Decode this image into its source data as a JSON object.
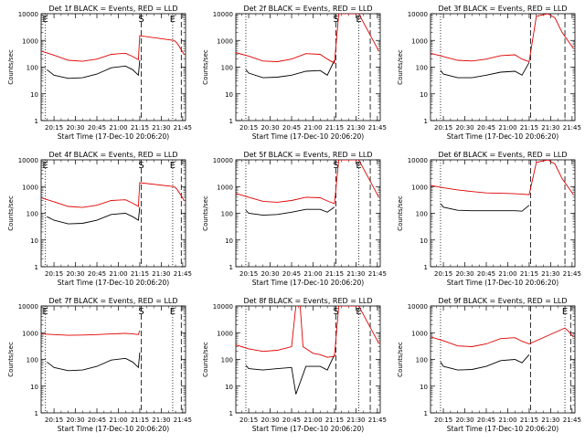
{
  "chart_data": [
    {
      "type": "line",
      "title": "Det 1f BLACK = Events, RED = LLD",
      "xlabel": "Start Time (17-Dec-10 20:06:20)",
      "ylabel": "Counts/sec",
      "y_scale": "log",
      "ylim": [
        1,
        10000
      ],
      "xlim": [
        "20:06",
        "21:47"
      ],
      "x_ticks": [
        "20:15",
        "20:30",
        "20:45",
        "21:00",
        "21:15",
        "21:30",
        "21:45"
      ],
      "y_ticks": [
        "1",
        "10",
        "100",
        "1000",
        "10000"
      ],
      "markers": [
        {
          "label": "E",
          "time": "20:09",
          "style": "dotted"
        },
        {
          "label": "S",
          "time": "21:16",
          "style": "dashed"
        },
        {
          "label": "E",
          "time": "21:38",
          "style": "dotted"
        },
        {
          "label": "",
          "time": "21:44",
          "style": "dashed"
        }
      ],
      "series": [
        {
          "color": "#000000",
          "x": [
            "20:10",
            "20:15",
            "20:25",
            "20:35",
            "20:45",
            "20:55",
            "21:05",
            "21:10",
            "21:14",
            "21:15"
          ],
          "y": [
            80,
            50,
            38,
            40,
            55,
            95,
            110,
            80,
            50,
            180
          ]
        },
        {
          "color": "#e00000",
          "x": [
            "20:06",
            "20:15",
            "20:25",
            "20:35",
            "20:45",
            "20:55",
            "21:05",
            "21:10",
            "21:14",
            "21:15",
            "21:39",
            "21:41",
            "21:44",
            "21:46"
          ],
          "y": [
            400,
            280,
            180,
            165,
            200,
            300,
            330,
            250,
            190,
            1500,
            1000,
            800,
            450,
            300
          ]
        }
      ]
    },
    {
      "type": "line",
      "title": "Det 2f BLACK = Events, RED = LLD",
      "xlabel": "Start Time (17-Dec-10 20:06:20)",
      "ylabel": "Counts/sec",
      "y_scale": "log",
      "ylim": [
        1,
        10000
      ],
      "xlim": [
        "20:06",
        "21:47"
      ],
      "x_ticks": [
        "20:15",
        "20:30",
        "20:45",
        "21:00",
        "21:15",
        "21:30",
        "21:45"
      ],
      "y_ticks": [
        "1",
        "10",
        "100",
        "1000",
        "10000"
      ],
      "markers": [
        {
          "label": "",
          "time": "20:13",
          "style": "dotted"
        },
        {
          "label": "S",
          "time": "21:16",
          "style": "dashed"
        },
        {
          "label": "E",
          "time": "21:32",
          "style": "dotted"
        },
        {
          "label": "",
          "time": "21:40",
          "style": "dashed"
        }
      ],
      "series": [
        {
          "color": "#000000",
          "x": [
            "20:13",
            "20:15",
            "20:25",
            "20:35",
            "20:45",
            "20:55",
            "21:05",
            "21:10",
            "21:15"
          ],
          "y": [
            80,
            60,
            40,
            42,
            50,
            70,
            75,
            50,
            180
          ]
        },
        {
          "color": "#e00000",
          "x": [
            "20:06",
            "20:15",
            "20:25",
            "20:35",
            "20:45",
            "20:55",
            "21:05",
            "21:10",
            "21:15",
            "21:18",
            "21:25",
            "21:32",
            "21:35",
            "21:40",
            "21:46"
          ],
          "y": [
            350,
            260,
            170,
            160,
            200,
            320,
            300,
            200,
            140,
            10000,
            10000,
            10000,
            5000,
            1600,
            400
          ]
        }
      ]
    },
    {
      "type": "line",
      "title": "Det 3f BLACK = Events, RED = LLD",
      "xlabel": "Start Time (17-Dec-10 20:06:20)",
      "ylabel": "Counts/sec",
      "y_scale": "log",
      "ylim": [
        1,
        10000
      ],
      "xlim": [
        "20:06",
        "21:47"
      ],
      "x_ticks": [
        "20:15",
        "20:30",
        "20:45",
        "21:00",
        "21:15",
        "21:30",
        "21:45"
      ],
      "y_ticks": [
        "1",
        "10",
        "100",
        "1000",
        "10000"
      ],
      "markers": [
        {
          "label": "",
          "time": "20:13",
          "style": "dotted"
        },
        {
          "label": "",
          "time": "21:16",
          "style": "dashed"
        },
        {
          "label": "",
          "time": "21:40",
          "style": "dashed"
        }
      ],
      "series": [
        {
          "color": "#000000",
          "x": [
            "20:13",
            "20:15",
            "20:25",
            "20:35",
            "20:45",
            "20:55",
            "21:05",
            "21:10",
            "21:15"
          ],
          "y": [
            75,
            55,
            40,
            40,
            50,
            65,
            70,
            50,
            150
          ]
        },
        {
          "color": "#e00000",
          "x": [
            "20:06",
            "20:15",
            "20:25",
            "20:35",
            "20:45",
            "20:55",
            "21:05",
            "21:10",
            "21:15",
            "21:20",
            "21:28",
            "21:33",
            "21:38",
            "21:46"
          ],
          "y": [
            330,
            250,
            180,
            170,
            200,
            270,
            290,
            200,
            160,
            8000,
            10000,
            7000,
            2000,
            500
          ]
        }
      ]
    },
    {
      "type": "line",
      "title": "Det 4f BLACK = Events, RED = LLD",
      "xlabel": "Start Time (17-Dec-10 20:06:20)",
      "ylabel": "Counts/sec",
      "y_scale": "log",
      "ylim": [
        1,
        10000
      ],
      "xlim": [
        "20:06",
        "21:47"
      ],
      "x_ticks": [
        "20:15",
        "20:30",
        "20:45",
        "21:00",
        "21:15",
        "21:30",
        "21:45"
      ],
      "y_ticks": [
        "1",
        "10",
        "100",
        "1000",
        "10000"
      ],
      "markers": [
        {
          "label": "E",
          "time": "20:09",
          "style": "dotted"
        },
        {
          "label": "S",
          "time": "21:16",
          "style": "dashed"
        },
        {
          "label": "E",
          "time": "21:38",
          "style": "dotted"
        },
        {
          "label": "",
          "time": "21:44",
          "style": "dashed"
        }
      ],
      "series": [
        {
          "color": "#000000",
          "x": [
            "20:10",
            "20:15",
            "20:25",
            "20:35",
            "20:45",
            "20:55",
            "21:05",
            "21:10",
            "21:14",
            "21:15"
          ],
          "y": [
            75,
            55,
            40,
            42,
            55,
            90,
            100,
            75,
            55,
            170
          ]
        },
        {
          "color": "#e00000",
          "x": [
            "20:06",
            "20:15",
            "20:25",
            "20:35",
            "20:45",
            "20:55",
            "21:05",
            "21:10",
            "21:14",
            "21:15",
            "21:39",
            "21:41",
            "21:44",
            "21:46"
          ],
          "y": [
            380,
            270,
            180,
            165,
            200,
            300,
            320,
            240,
            180,
            1400,
            1000,
            800,
            450,
            300
          ]
        }
      ]
    },
    {
      "type": "line",
      "title": "Det 5f BLACK = Events, RED = LLD",
      "xlabel": "Start Time (17-Dec-10 20:06:20)",
      "ylabel": "Counts/sec",
      "y_scale": "log",
      "ylim": [
        1,
        10000
      ],
      "xlim": [
        "20:06",
        "21:47"
      ],
      "x_ticks": [
        "20:15",
        "20:30",
        "20:45",
        "21:00",
        "21:15",
        "21:30",
        "21:45"
      ],
      "y_ticks": [
        "1",
        "10",
        "100",
        "1000",
        "10000"
      ],
      "markers": [
        {
          "label": "",
          "time": "20:13",
          "style": "dotted"
        },
        {
          "label": "S",
          "time": "21:16",
          "style": "dashed"
        },
        {
          "label": "E",
          "time": "21:32",
          "style": "dotted"
        },
        {
          "label": "",
          "time": "21:40",
          "style": "dashed"
        }
      ],
      "series": [
        {
          "color": "#000000",
          "x": [
            "20:13",
            "20:15",
            "20:25",
            "20:35",
            "20:45",
            "20:55",
            "21:05",
            "21:10",
            "21:15"
          ],
          "y": [
            130,
            100,
            85,
            90,
            110,
            140,
            140,
            110,
            170
          ]
        },
        {
          "color": "#e00000",
          "x": [
            "20:06",
            "20:15",
            "20:25",
            "20:35",
            "20:45",
            "20:55",
            "21:05",
            "21:10",
            "21:15",
            "21:18",
            "21:25",
            "21:32",
            "21:35",
            "21:40",
            "21:46"
          ],
          "y": [
            550,
            400,
            280,
            260,
            300,
            400,
            380,
            290,
            230,
            10000,
            10000,
            10000,
            5000,
            1600,
            400
          ]
        }
      ]
    },
    {
      "type": "line",
      "title": "Det 6f BLACK = Events, RED = LLD",
      "xlabel": "Start Time (17-Dec-10 20:06:20)",
      "ylabel": "Counts/sec",
      "y_scale": "log",
      "ylim": [
        1,
        10000
      ],
      "xlim": [
        "20:06",
        "21:47"
      ],
      "x_ticks": [
        "20:15",
        "20:30",
        "20:45",
        "21:00",
        "21:15",
        "21:30",
        "21:45"
      ],
      "y_ticks": [
        "1",
        "10",
        "100",
        "1000",
        "10000"
      ],
      "markers": [
        {
          "label": "",
          "time": "20:13",
          "style": "dotted"
        },
        {
          "label": "",
          "time": "21:16",
          "style": "dashed"
        },
        {
          "label": "",
          "time": "21:40",
          "style": "dashed"
        }
      ],
      "series": [
        {
          "color": "#000000",
          "x": [
            "20:13",
            "20:15",
            "20:25",
            "20:35",
            "20:45",
            "20:55",
            "21:05",
            "21:10",
            "21:15"
          ],
          "y": [
            230,
            170,
            130,
            125,
            125,
            125,
            125,
            120,
            200
          ]
        },
        {
          "color": "#e00000",
          "x": [
            "20:06",
            "20:15",
            "20:25",
            "20:35",
            "20:45",
            "20:55",
            "21:05",
            "21:10",
            "21:15",
            "21:20",
            "21:28",
            "21:33",
            "21:38",
            "21:46"
          ],
          "y": [
            1100,
            900,
            750,
            650,
            580,
            560,
            540,
            520,
            500,
            8000,
            10000,
            7000,
            2000,
            500
          ]
        }
      ]
    },
    {
      "type": "line",
      "title": "Det 7f BLACK = Events, RED = LLD",
      "xlabel": "Start Time (17-Dec-10 20:06:20)",
      "ylabel": "Counts/sec",
      "y_scale": "log",
      "ylim": [
        1,
        10000
      ],
      "xlim": [
        "20:06",
        "21:47"
      ],
      "x_ticks": [
        "20:15",
        "20:30",
        "20:45",
        "21:00",
        "21:15",
        "21:30",
        "21:45"
      ],
      "y_ticks": [
        "1",
        "10",
        "100",
        "1000",
        "10000"
      ],
      "markers": [
        {
          "label": "E",
          "time": "20:09",
          "style": "dotted"
        },
        {
          "label": "S",
          "time": "21:16",
          "style": "dashed"
        },
        {
          "label": "E",
          "time": "21:38",
          "style": "dotted"
        },
        {
          "label": "",
          "time": "21:44",
          "style": "dashed"
        }
      ],
      "series": [
        {
          "color": "#000000",
          "x": [
            "20:10",
            "20:15",
            "20:25",
            "20:35",
            "20:45",
            "20:55",
            "21:05",
            "21:10",
            "21:14",
            "21:15"
          ],
          "y": [
            80,
            50,
            38,
            40,
            55,
            95,
            110,
            80,
            50,
            180
          ]
        },
        {
          "color": "#e00000",
          "x": [
            "20:06",
            "20:15",
            "20:25",
            "20:35",
            "20:45",
            "20:55",
            "21:05",
            "21:10",
            "21:14",
            "21:15"
          ],
          "y": [
            900,
            850,
            800,
            820,
            850,
            900,
            950,
            900,
            850,
            1200
          ]
        }
      ]
    },
    {
      "type": "line",
      "title": "Det 8f BLACK = Events, RED = LLD",
      "xlabel": "Start Time (17-Dec-10 20:06:20)",
      "ylabel": "Counts/sec",
      "y_scale": "log",
      "ylim": [
        1,
        10000
      ],
      "xlim": [
        "20:06",
        "21:47"
      ],
      "x_ticks": [
        "20:15",
        "20:30",
        "20:45",
        "21:00",
        "21:15",
        "21:30",
        "21:45"
      ],
      "y_ticks": [
        "1",
        "10",
        "100",
        "1000",
        "10000"
      ],
      "markers": [
        {
          "label": "",
          "time": "20:13",
          "style": "dotted"
        },
        {
          "label": "S",
          "time": "21:16",
          "style": "dashed"
        },
        {
          "label": "E",
          "time": "21:32",
          "style": "dotted"
        },
        {
          "label": "",
          "time": "21:40",
          "style": "dashed"
        }
      ],
      "series": [
        {
          "color": "#000000",
          "x": [
            "20:13",
            "20:15",
            "20:25",
            "20:35",
            "20:45",
            "20:48",
            "20:55",
            "21:05",
            "21:10",
            "21:15"
          ],
          "y": [
            60,
            45,
            40,
            45,
            50,
            5,
            55,
            55,
            40,
            150
          ]
        },
        {
          "color": "#e00000",
          "x": [
            "20:06",
            "20:15",
            "20:25",
            "20:35",
            "20:45",
            "20:48",
            "20:51",
            "20:53",
            "21:00",
            "21:05",
            "21:10",
            "21:15",
            "21:18",
            "21:25",
            "21:32",
            "21:35",
            "21:40",
            "21:46"
          ],
          "y": [
            350,
            250,
            200,
            220,
            300,
            10000,
            10000,
            300,
            170,
            150,
            120,
            130,
            10000,
            10000,
            10000,
            5000,
            1600,
            400
          ]
        }
      ]
    },
    {
      "type": "line",
      "title": "Det 9f BLACK = Events, RED = LLD",
      "xlabel": "Start Time (17-Dec-10 20:06:20)",
      "ylabel": "Counts/sec",
      "y_scale": "log",
      "ylim": [
        1,
        10000
      ],
      "xlim": [
        "20:06",
        "21:47"
      ],
      "x_ticks": [
        "20:15",
        "20:30",
        "20:45",
        "21:00",
        "21:15",
        "21:30",
        "21:45"
      ],
      "y_ticks": [
        "1",
        "10",
        "100",
        "1000",
        "10000"
      ],
      "markers": [
        {
          "label": "",
          "time": "20:13",
          "style": "dotted"
        },
        {
          "label": "",
          "time": "21:16",
          "style": "dashed"
        },
        {
          "label": "E",
          "time": "21:40",
          "style": "dotted"
        },
        {
          "label": "",
          "time": "21:44",
          "style": "dashed"
        }
      ],
      "series": [
        {
          "color": "#000000",
          "x": [
            "20:13",
            "20:15",
            "20:25",
            "20:35",
            "20:45",
            "20:55",
            "21:05",
            "21:10",
            "21:15"
          ],
          "y": [
            80,
            55,
            40,
            42,
            55,
            90,
            100,
            75,
            150
          ]
        },
        {
          "color": "#e00000",
          "x": [
            "20:06",
            "20:15",
            "20:25",
            "20:35",
            "20:45",
            "20:55",
            "21:05",
            "21:10",
            "21:15",
            "21:40",
            "21:42",
            "21:44",
            "21:46"
          ],
          "y": [
            700,
            500,
            320,
            300,
            380,
            600,
            650,
            480,
            380,
            1500,
            1200,
            900,
            700
          ]
        }
      ]
    }
  ]
}
